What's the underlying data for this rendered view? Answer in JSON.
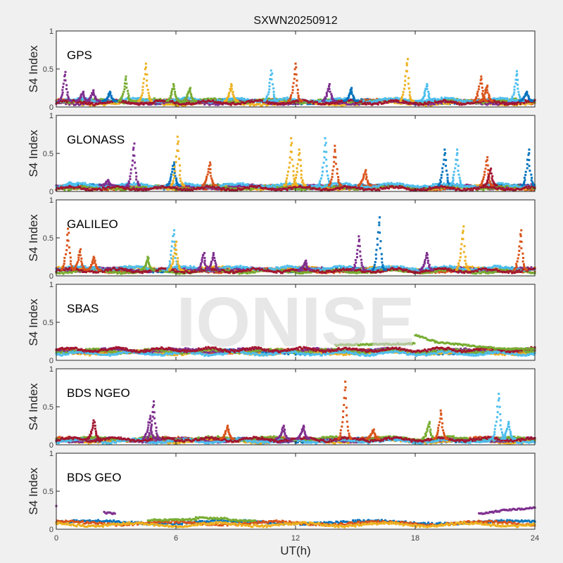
{
  "watermark": "IONISE",
  "chart_data": {
    "type": "scatter",
    "title": "SXWN20250912",
    "xlabel": "UT(h)",
    "ylabel": "S4 Index",
    "xlim": [
      0,
      24
    ],
    "ylim": [
      0,
      1
    ],
    "xticks": [
      "0",
      "6",
      "12",
      "18",
      "24"
    ],
    "yticks": [
      "0",
      "0.5",
      "1"
    ],
    "grid": false,
    "colors": [
      "#0072BD",
      "#D95319",
      "#EDB120",
      "#7E2F8E",
      "#77AC30",
      "#4DBEEE",
      "#A2142F"
    ],
    "panels": [
      {
        "name": "GPS",
        "baseline": [
          0.07,
          0.07,
          0.05,
          0.06,
          0.08,
          0.09,
          0.06
        ],
        "spikes": [
          [
            0.46,
            0.46,
            3
          ],
          [
            1.34,
            0.2,
            3
          ],
          [
            1.87,
            0.22,
            3
          ],
          [
            2.7,
            0.2,
            0
          ],
          [
            3.5,
            0.4,
            4
          ],
          [
            4.5,
            0.57,
            2
          ],
          [
            5.9,
            0.3,
            4
          ],
          [
            6.7,
            0.25,
            4
          ],
          [
            8.8,
            0.3,
            2
          ],
          [
            10.8,
            0.48,
            5
          ],
          [
            12.0,
            0.57,
            1
          ],
          [
            13.7,
            0.3,
            3
          ],
          [
            14.8,
            0.25,
            0
          ],
          [
            17.6,
            0.63,
            2
          ],
          [
            18.6,
            0.3,
            5
          ],
          [
            21.3,
            0.4,
            1
          ],
          [
            21.6,
            0.28,
            1
          ],
          [
            23.1,
            0.47,
            5
          ],
          [
            23.6,
            0.2,
            0
          ]
        ],
        "segments": []
      },
      {
        "name": "GLONASS",
        "baseline": [
          0.06,
          0.05,
          0.05,
          0.06,
          0.05,
          0.08,
          0.04
        ],
        "spikes": [
          [
            0.7,
            0.12,
            5
          ],
          [
            2.6,
            0.15,
            3
          ],
          [
            3.9,
            0.63,
            3
          ],
          [
            5.9,
            0.38,
            0
          ],
          [
            6.1,
            0.72,
            2
          ],
          [
            7.7,
            0.38,
            1
          ],
          [
            11.8,
            0.7,
            2
          ],
          [
            12.2,
            0.55,
            2
          ],
          [
            13.5,
            0.7,
            5
          ],
          [
            14.0,
            0.6,
            1
          ],
          [
            15.5,
            0.28,
            1
          ],
          [
            19.5,
            0.55,
            0
          ],
          [
            20.1,
            0.55,
            5
          ],
          [
            21.6,
            0.45,
            1
          ],
          [
            21.8,
            0.3,
            6
          ],
          [
            23.7,
            0.55,
            0
          ]
        ],
        "segments": []
      },
      {
        "name": "GALILEO",
        "baseline": [
          0.08,
          0.07,
          0.09,
          0.08,
          0.06,
          0.1,
          0.07
        ],
        "spikes": [
          [
            0.6,
            0.62,
            1
          ],
          [
            1.2,
            0.35,
            1
          ],
          [
            1.9,
            0.25,
            1
          ],
          [
            4.6,
            0.25,
            4
          ],
          [
            5.9,
            0.6,
            5
          ],
          [
            6.0,
            0.45,
            2
          ],
          [
            7.4,
            0.3,
            3
          ],
          [
            7.9,
            0.3,
            3
          ],
          [
            12.5,
            0.2,
            3
          ],
          [
            15.2,
            0.52,
            3
          ],
          [
            16.2,
            0.77,
            0
          ],
          [
            18.6,
            0.3,
            3
          ],
          [
            20.4,
            0.65,
            2
          ],
          [
            23.3,
            0.6,
            1
          ]
        ],
        "segments": []
      },
      {
        "name": "SBAS",
        "baseline": [
          0.11,
          0.12,
          0.1,
          0.13,
          0.12,
          0.09,
          0.14
        ],
        "spikes": [],
        "segments": [
          [
            14.0,
            18.0,
            0.2,
            0.22,
            4
          ],
          [
            18.0,
            19.0,
            0.33,
            0.25,
            4
          ],
          [
            19.0,
            22.0,
            0.24,
            0.16,
            4
          ],
          [
            22.0,
            24.0,
            0.15,
            0.15,
            4
          ]
        ]
      },
      {
        "name": "BDS NGEO",
        "baseline": [
          0.06,
          0.07,
          0.05,
          0.06,
          0.08,
          0.05,
          0.07
        ],
        "spikes": [
          [
            1.9,
            0.32,
            6
          ],
          [
            4.7,
            0.38,
            3
          ],
          [
            4.9,
            0.57,
            3
          ],
          [
            8.6,
            0.25,
            1
          ],
          [
            11.4,
            0.25,
            3
          ],
          [
            12.4,
            0.25,
            3
          ],
          [
            14.5,
            0.83,
            1
          ],
          [
            15.9,
            0.2,
            1
          ],
          [
            18.7,
            0.3,
            4
          ],
          [
            19.3,
            0.45,
            1
          ],
          [
            22.2,
            0.67,
            5
          ],
          [
            22.7,
            0.3,
            5
          ]
        ],
        "segments": []
      },
      {
        "name": "BDS GEO",
        "baseline": [
          0.09,
          0.08,
          0.06,
          null,
          null,
          null,
          null
        ],
        "spikes": [],
        "segments": [
          [
            0.0,
            0.05,
            0.3,
            0.3,
            3
          ],
          [
            2.4,
            3.0,
            0.22,
            0.2,
            3
          ],
          [
            4.6,
            7.0,
            0.12,
            0.13,
            4
          ],
          [
            7.0,
            8.6,
            0.15,
            0.14,
            4
          ],
          [
            8.6,
            10.0,
            0.12,
            0.11,
            4
          ],
          [
            21.2,
            22.5,
            0.2,
            0.25,
            3
          ],
          [
            22.5,
            24.0,
            0.25,
            0.28,
            3
          ]
        ]
      }
    ]
  }
}
